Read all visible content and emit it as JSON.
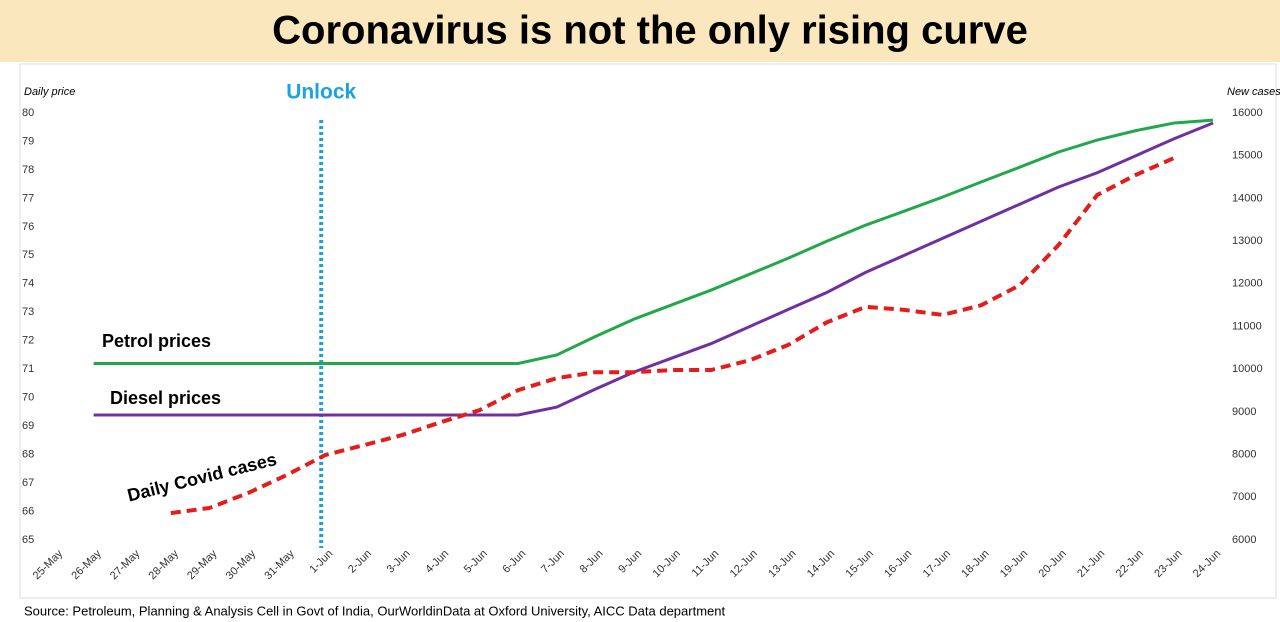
{
  "chart_data": {
    "type": "line",
    "title": "Coronavirus is not the only rising curve",
    "ylabel": "Daily price",
    "y2label": "New cases",
    "source": "Source: Petroleum, Planning & Analysis Cell in Govt of India, OurWorldinData at Oxford University, AICC Data department",
    "annotation": {
      "text": "Unlock",
      "x": "1-Jun",
      "color": "#1aa3e0"
    },
    "categories": [
      "25-May",
      "26-May",
      "27-May",
      "28-May",
      "29-May",
      "30-May",
      "31-May",
      "1-Jun",
      "2-Jun",
      "3-Jun",
      "4-Jun",
      "5-Jun",
      "6-Jun",
      "7-Jun",
      "8-Jun",
      "9-Jun",
      "10-Jun",
      "11-Jun",
      "12-Jun",
      "13-Jun",
      "14-Jun",
      "15-Jun",
      "16-Jun",
      "17-Jun",
      "18-Jun",
      "19-Jun",
      "20-Jun",
      "21-Jun",
      "22-Jun",
      "23-Jun",
      "24-Jun"
    ],
    "series": [
      {
        "name": "Petrol prices",
        "color": "#22a84a",
        "axis": "y",
        "values": [
          null,
          71.2,
          71.2,
          71.2,
          71.2,
          71.2,
          71.2,
          71.2,
          71.2,
          71.2,
          71.2,
          71.2,
          71.2,
          71.5,
          72.15,
          72.76,
          73.27,
          73.78,
          74.34,
          74.9,
          75.5,
          76.06,
          76.55,
          77.05,
          77.58,
          78.1,
          78.63,
          79.05,
          79.38,
          79.65,
          79.75
        ]
      },
      {
        "name": "Diesel prices",
        "color": "#7030a0",
        "axis": "y",
        "values": [
          null,
          69.39,
          69.39,
          69.39,
          69.39,
          69.39,
          69.39,
          69.39,
          69.39,
          69.39,
          69.39,
          69.39,
          69.39,
          69.67,
          70.3,
          70.9,
          71.4,
          71.9,
          72.5,
          73.1,
          73.7,
          74.4,
          75.0,
          75.6,
          76.2,
          76.8,
          77.4,
          77.9,
          78.5,
          79.1,
          79.65
        ]
      },
      {
        "name": "Daily Covid cases",
        "color": "#e31c1c",
        "axis": "y2",
        "dashed": true,
        "values": [
          null,
          null,
          null,
          6630,
          6750,
          7100,
          7520,
          7990,
          8220,
          8460,
          8760,
          9040,
          9510,
          9790,
          9930,
          9930,
          9980,
          9980,
          10210,
          10570,
          11100,
          11460,
          11390,
          11270,
          11500,
          11970,
          12910,
          14080,
          14550,
          14950,
          null
        ]
      }
    ],
    "ylim": [
      65,
      80
    ],
    "yticks": [
      65,
      66,
      67,
      68,
      69,
      70,
      71,
      72,
      73,
      74,
      75,
      76,
      77,
      78,
      79,
      80
    ],
    "y2lim": [
      6000,
      16000
    ],
    "y2ticks": [
      6000,
      7000,
      8000,
      9000,
      10000,
      11000,
      12000,
      13000,
      14000,
      15000,
      16000
    ]
  }
}
